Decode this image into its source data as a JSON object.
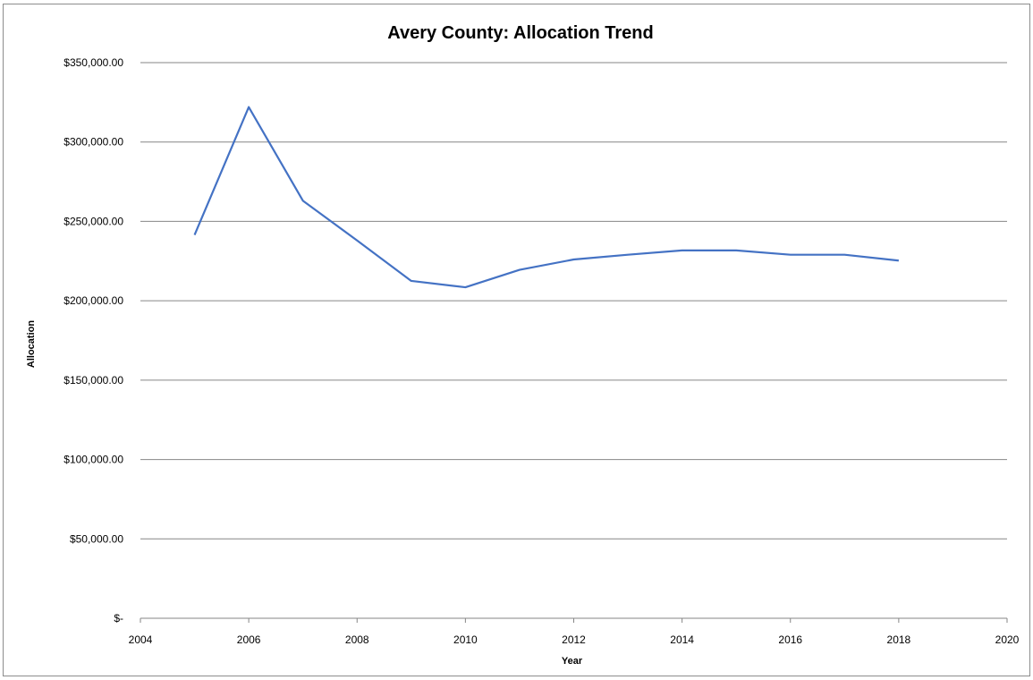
{
  "chart_data": {
    "type": "line",
    "title": "Avery County: Allocation Trend",
    "xlabel": "Year",
    "ylabel": "Allocation",
    "xlim": [
      2004,
      2020
    ],
    "ylim": [
      0,
      350000
    ],
    "x_ticks": [
      "2004",
      "2006",
      "2008",
      "2010",
      "2012",
      "2014",
      "2016",
      "2018",
      "2020"
    ],
    "y_ticks": [
      "$-",
      "$50,000.00",
      "$100,000.00",
      "$150,000.00",
      "$200,000.00",
      "$250,000.00",
      "$300,000.00",
      "$350,000.00"
    ],
    "grid": true,
    "legend": false,
    "series": [
      {
        "color": "#4472c4",
        "x": [
          2005,
          2006,
          2007,
          2008,
          2009,
          2010,
          2011,
          2012,
          2013,
          2014,
          2015,
          2016,
          2017,
          2018
        ],
        "values": [
          241500,
          322000,
          263000,
          238000,
          212500,
          208500,
          219500,
          226000,
          229000,
          231700,
          231700,
          229000,
          229000,
          225300
        ]
      }
    ]
  }
}
